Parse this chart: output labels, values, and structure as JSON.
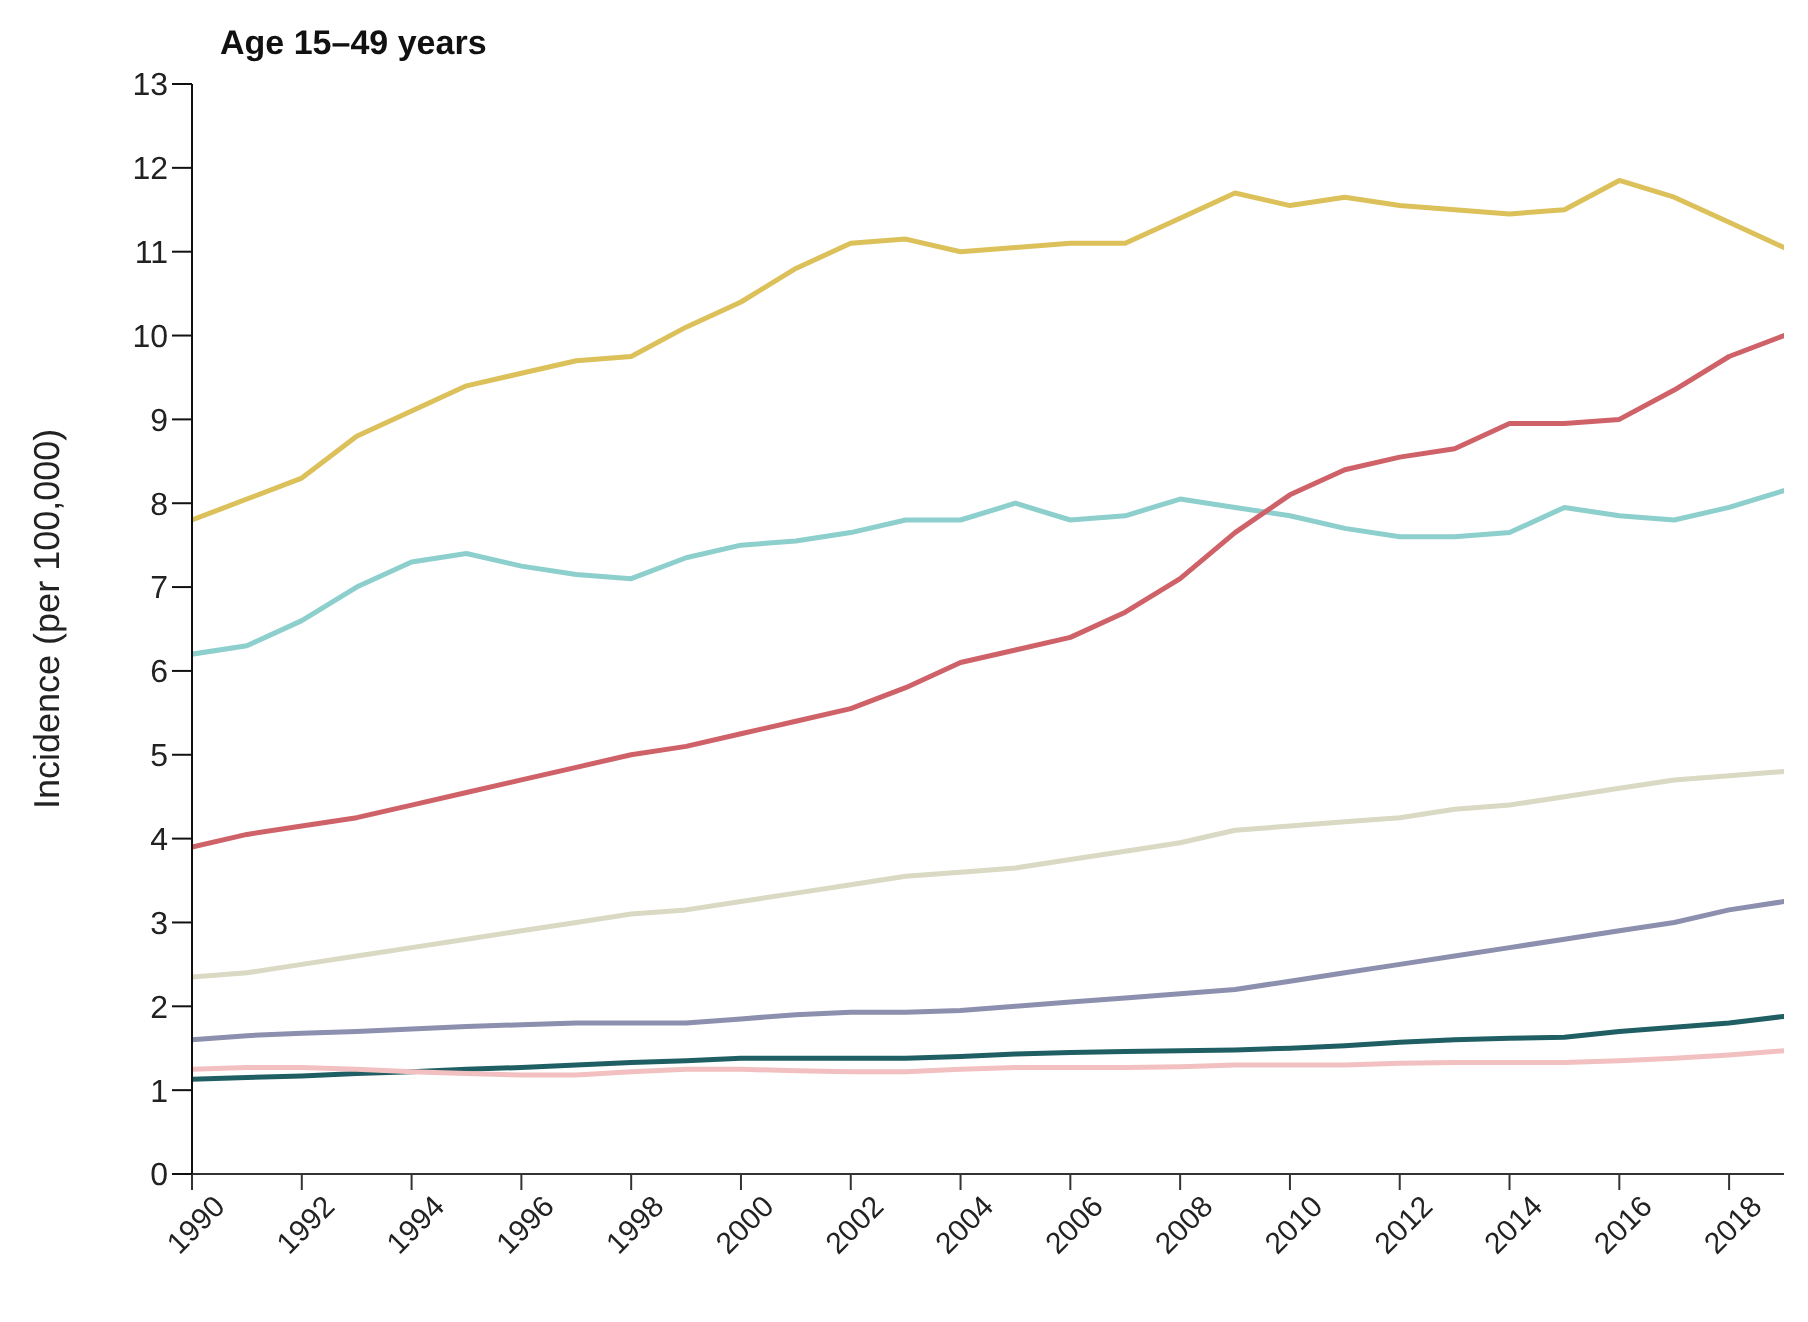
{
  "chart_data": {
    "type": "line",
    "title": "Age 15–49 years",
    "ylabel": "Incidence (per 100,000)",
    "x": [
      1990,
      1991,
      1992,
      1993,
      1994,
      1995,
      1996,
      1997,
      1998,
      1999,
      2000,
      2001,
      2002,
      2003,
      2004,
      2005,
      2006,
      2007,
      2008,
      2009,
      2010,
      2011,
      2012,
      2013,
      2014,
      2015,
      2016,
      2017,
      2018,
      2019
    ],
    "series": [
      {
        "color": "#dcc05a",
        "values": [
          7.8,
          8.05,
          8.3,
          8.8,
          9.1,
          9.4,
          9.55,
          9.7,
          9.75,
          10.1,
          10.4,
          10.8,
          11.1,
          11.15,
          11.0,
          11.05,
          11.1,
          11.1,
          11.4,
          11.7,
          11.55,
          11.65,
          11.55,
          11.5,
          11.45,
          11.5,
          11.85,
          11.65,
          11.35,
          11.05
        ]
      },
      {
        "color": "#8ccfcc",
        "values": [
          6.2,
          6.3,
          6.6,
          7.0,
          7.3,
          7.4,
          7.25,
          7.15,
          7.1,
          7.35,
          7.5,
          7.55,
          7.65,
          7.8,
          7.8,
          8.0,
          7.8,
          7.85,
          8.05,
          7.95,
          7.85,
          7.7,
          7.6,
          7.6,
          7.65,
          7.95,
          7.85,
          7.8,
          7.95,
          8.15
        ]
      },
      {
        "color": "#cf6268",
        "values": [
          3.9,
          4.05,
          4.15,
          4.25,
          4.4,
          4.55,
          4.7,
          4.85,
          5.0,
          5.1,
          5.25,
          5.4,
          5.55,
          5.8,
          6.1,
          6.25,
          6.4,
          6.7,
          7.1,
          7.65,
          8.1,
          8.4,
          8.55,
          8.65,
          8.95,
          8.95,
          9.0,
          9.35,
          9.75,
          10.0
        ]
      },
      {
        "color": "#dad9c3",
        "values": [
          2.35,
          2.4,
          2.5,
          2.6,
          2.7,
          2.8,
          2.9,
          3.0,
          3.1,
          3.15,
          3.25,
          3.35,
          3.45,
          3.55,
          3.6,
          3.65,
          3.75,
          3.85,
          3.95,
          4.1,
          4.15,
          4.2,
          4.25,
          4.35,
          4.4,
          4.5,
          4.6,
          4.7,
          4.75,
          4.8
        ]
      },
      {
        "color": "#8c8fae",
        "values": [
          1.6,
          1.65,
          1.68,
          1.7,
          1.73,
          1.76,
          1.78,
          1.8,
          1.8,
          1.8,
          1.85,
          1.9,
          1.93,
          1.93,
          1.95,
          2.0,
          2.05,
          2.1,
          2.15,
          2.2,
          2.3,
          2.4,
          2.5,
          2.6,
          2.7,
          2.8,
          2.9,
          3.0,
          3.15,
          3.25
        ]
      },
      {
        "color": "#1f5f63",
        "values": [
          1.13,
          1.15,
          1.17,
          1.2,
          1.22,
          1.25,
          1.27,
          1.3,
          1.33,
          1.35,
          1.38,
          1.38,
          1.38,
          1.38,
          1.4,
          1.43,
          1.45,
          1.46,
          1.47,
          1.48,
          1.5,
          1.53,
          1.57,
          1.6,
          1.62,
          1.63,
          1.7,
          1.75,
          1.8,
          1.88
        ]
      },
      {
        "color": "#f2c0c0",
        "values": [
          1.25,
          1.27,
          1.27,
          1.25,
          1.22,
          1.2,
          1.18,
          1.18,
          1.22,
          1.25,
          1.25,
          1.23,
          1.22,
          1.22,
          1.25,
          1.27,
          1.27,
          1.27,
          1.28,
          1.3,
          1.3,
          1.3,
          1.32,
          1.33,
          1.33,
          1.33,
          1.35,
          1.38,
          1.42,
          1.47
        ]
      }
    ],
    "xlim": [
      1990,
      2019
    ],
    "xticks": [
      1990,
      1992,
      1994,
      1996,
      1998,
      2000,
      2002,
      2004,
      2006,
      2008,
      2010,
      2012,
      2014,
      2016,
      2018
    ],
    "ylim": [
      0,
      13
    ],
    "yticks": [
      0,
      1,
      2,
      3,
      4,
      5,
      6,
      7,
      8,
      9,
      10,
      11,
      12,
      13
    ],
    "grid": false,
    "legend": false,
    "marker": "none",
    "line_style": "solid"
  }
}
